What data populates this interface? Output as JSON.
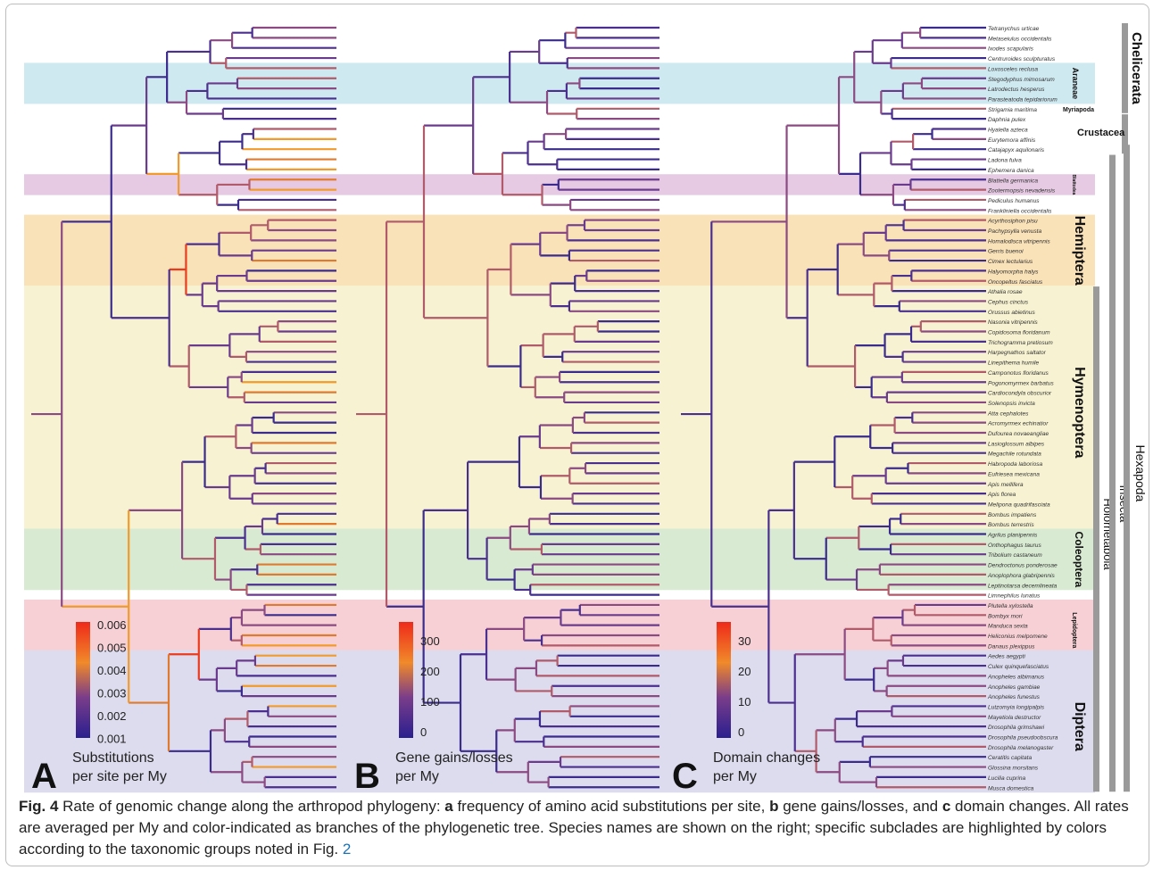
{
  "figure": {
    "panels": [
      {
        "letter": "A",
        "label_line1": "Substitutions",
        "label_line2": "per site per My",
        "ticks": [
          "0.006",
          "0.005",
          "0.004",
          "0.003",
          "0.002",
          "0.001"
        ]
      },
      {
        "letter": "B",
        "label_line1": "Gene gains/losses",
        "label_line2": "per My",
        "ticks": [
          "300",
          "200",
          "100",
          "0"
        ]
      },
      {
        "letter": "C",
        "label_line1": "Domain changes",
        "label_line2": "per My",
        "ticks": [
          "30",
          "20",
          "10",
          "0"
        ]
      }
    ],
    "species": [
      "Tetranychus urticae",
      "Metaseiulus occidentalis",
      "Ixodes scapularis",
      "Centruroides sculpturatus",
      "Loxosceles reclusa",
      "Stegodyphus mimosarum",
      "Latrodectus hesperus",
      "Parasteatoda tepidariorum",
      "Strigamia maritima",
      "Daphnia pulex",
      "Hyalella azteca",
      "Eurytemora affinis",
      "Catajapyx aquilonaris",
      "Ladona fulva",
      "Ephemera danica",
      "Blattella germanica",
      "Zootermopsis nevadensis",
      "Pediculus humanus",
      "Frankliniella occidentalis",
      "Acyrthosiphon pisu",
      "Pachypsylla venusta",
      "Homalodisca vitripennis",
      "Gerris buenoi",
      "Cimex lectularius",
      "Halyomorpha halys",
      "Oncopeltus fasciatus",
      "Athalia rosae",
      "Cephus cinctus",
      "Orussus abietinus",
      "Nasonia vitripennis",
      "Copidosoma floridanum",
      "Trichogramma pretiosum",
      "Harpegnathos saltator",
      "Linepithema humile",
      "Camponotus floridanus",
      "Pogonomyrmex barbatus",
      "Cardiocondyla obscurior",
      "Solenopsis invicta",
      "Atta cephalotes",
      "Acromyrmex echinatior",
      "Dufourea novaeangliae",
      "Lasioglossum albipes",
      "Megachile rotundata",
      "Habropoda laboriosa",
      "Eufriesea mexicana",
      "Apis mellifera",
      "Apis florea",
      "Melipona quadrifasciata",
      "Bombus impatiens",
      "Bombus terrestris",
      "Agrilus planipennis",
      "Onthophagus taurus",
      "Tribolium castaneum",
      "Dendroctonus ponderosae",
      "Anoplophora glabripennis",
      "Leptinotarsa decemlineata",
      "Limnephilus lunatus",
      "Plutella xylostella",
      "Bombyx mori",
      "Manduca sexta",
      "Heliconius melpomene",
      "Danaus plexippus",
      "Aedes aegypti",
      "Culex quinquefasciatus",
      "Anopheles albimanus",
      "Anopheles gambiae",
      "Anopheles funestus",
      "Lutzomyia longipalpis",
      "Mayetiola destructor",
      "Drosophila grimshawi",
      "Drosophila pseudoobscura",
      "Drosophila melanogaster",
      "Ceratitis capitata",
      "Glossina morsitans",
      "Lucilia cuprina",
      "Musca domestica"
    ],
    "clade_tags": [
      "Chelicerata",
      "Araneae",
      "Myriapoda",
      "Crustacea",
      "Blattodea",
      "Hemiptera",
      "Hymenoptera",
      "Coleoptera",
      "Lepidoptera",
      "Diptera",
      "Holometabola",
      "Insecta",
      "Hexapoda"
    ],
    "colors": {
      "araneae": "#cfe9f1",
      "blattodea": "#e6c9e3",
      "hemiptera": "#f9e1b8",
      "hymenoptera": "#f7f3d2",
      "coleoptera": "#d8ead2",
      "lepidoptera": "#f6d0d4",
      "diptera": "#dcdcee"
    }
  },
  "caption": {
    "fig_label": "Fig. 4",
    "t1": " Rate of genomic change along the arthropod phylogeny: ",
    "a": "a",
    "t2": " frequency of amino acid substitutions per site, ",
    "b": "b",
    "t3": " gene gains/losses, and ",
    "c": "c",
    "t4": " domain changes. All rates are averaged per My and color-indicated as branches of the phylogenetic tree. Species names are shown on the right; specific subclades are highlighted by colors according to the taxonomic groups noted in Fig. ",
    "ref": "2"
  }
}
